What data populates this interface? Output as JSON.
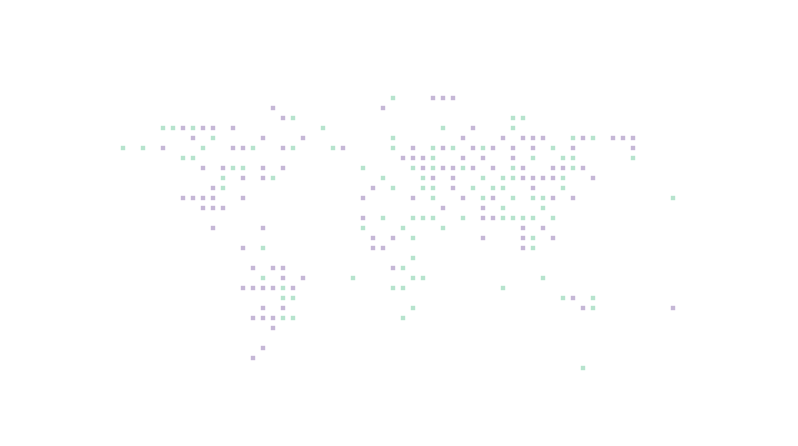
{
  "map": {
    "style": "dotted-world-map",
    "background_color": "#ffffff",
    "palette": {
      "purple": "#c5b7d6",
      "green": "#b6e3cd"
    },
    "dots": [
      {
        "row": 4,
        "col": 39,
        "color": "green"
      },
      {
        "row": 4,
        "col": 43,
        "color": "purple"
      },
      {
        "row": 4,
        "col": 44,
        "color": "purple"
      },
      {
        "row": 4,
        "col": 45,
        "color": "purple"
      },
      {
        "row": 5,
        "col": 27,
        "color": "purple"
      },
      {
        "row": 5,
        "col": 38,
        "color": "purple"
      },
      {
        "row": 6,
        "col": 28,
        "color": "purple"
      },
      {
        "row": 6,
        "col": 29,
        "color": "green"
      },
      {
        "row": 6,
        "col": 51,
        "color": "green"
      },
      {
        "row": 6,
        "col": 52,
        "color": "green"
      },
      {
        "row": 7,
        "col": 16,
        "color": "green"
      },
      {
        "row": 7,
        "col": 17,
        "color": "green"
      },
      {
        "row": 7,
        "col": 18,
        "color": "purple"
      },
      {
        "row": 7,
        "col": 19,
        "color": "green"
      },
      {
        "row": 7,
        "col": 20,
        "color": "purple"
      },
      {
        "row": 7,
        "col": 21,
        "color": "purple"
      },
      {
        "row": 7,
        "col": 23,
        "color": "purple"
      },
      {
        "row": 7,
        "col": 32,
        "color": "green"
      },
      {
        "row": 7,
        "col": 44,
        "color": "green"
      },
      {
        "row": 7,
        "col": 47,
        "color": "purple"
      },
      {
        "row": 7,
        "col": 51,
        "color": "green"
      },
      {
        "row": 8,
        "col": 19,
        "color": "purple"
      },
      {
        "row": 8,
        "col": 21,
        "color": "green"
      },
      {
        "row": 8,
        "col": 26,
        "color": "purple"
      },
      {
        "row": 8,
        "col": 30,
        "color": "purple"
      },
      {
        "row": 8,
        "col": 39,
        "color": "green"
      },
      {
        "row": 8,
        "col": 46,
        "color": "purple"
      },
      {
        "row": 8,
        "col": 50,
        "color": "purple"
      },
      {
        "row": 8,
        "col": 52,
        "color": "purple"
      },
      {
        "row": 8,
        "col": 53,
        "color": "purple"
      },
      {
        "row": 8,
        "col": 54,
        "color": "purple"
      },
      {
        "row": 8,
        "col": 57,
        "color": "green"
      },
      {
        "row": 8,
        "col": 58,
        "color": "purple"
      },
      {
        "row": 8,
        "col": 59,
        "color": "green"
      },
      {
        "row": 8,
        "col": 61,
        "color": "purple"
      },
      {
        "row": 8,
        "col": 62,
        "color": "purple"
      },
      {
        "row": 8,
        "col": 63,
        "color": "purple"
      },
      {
        "row": 9,
        "col": 12,
        "color": "green"
      },
      {
        "row": 9,
        "col": 14,
        "color": "green"
      },
      {
        "row": 9,
        "col": 16,
        "color": "purple"
      },
      {
        "row": 9,
        "col": 20,
        "color": "green"
      },
      {
        "row": 9,
        "col": 23,
        "color": "purple"
      },
      {
        "row": 9,
        "col": 24,
        "color": "purple"
      },
      {
        "row": 9,
        "col": 25,
        "color": "green"
      },
      {
        "row": 9,
        "col": 28,
        "color": "purple"
      },
      {
        "row": 9,
        "col": 29,
        "color": "green"
      },
      {
        "row": 9,
        "col": 33,
        "color": "green"
      },
      {
        "row": 9,
        "col": 34,
        "color": "purple"
      },
      {
        "row": 9,
        "col": 39,
        "color": "green"
      },
      {
        "row": 9,
        "col": 41,
        "color": "purple"
      },
      {
        "row": 9,
        "col": 43,
        "color": "green"
      },
      {
        "row": 9,
        "col": 44,
        "color": "purple"
      },
      {
        "row": 9,
        "col": 45,
        "color": "green"
      },
      {
        "row": 9,
        "col": 47,
        "color": "purple"
      },
      {
        "row": 9,
        "col": 48,
        "color": "green"
      },
      {
        "row": 9,
        "col": 49,
        "color": "purple"
      },
      {
        "row": 9,
        "col": 51,
        "color": "purple"
      },
      {
        "row": 9,
        "col": 53,
        "color": "purple"
      },
      {
        "row": 9,
        "col": 55,
        "color": "green"
      },
      {
        "row": 9,
        "col": 57,
        "color": "purple"
      },
      {
        "row": 9,
        "col": 63,
        "color": "purple"
      },
      {
        "row": 10,
        "col": 18,
        "color": "green"
      },
      {
        "row": 10,
        "col": 19,
        "color": "green"
      },
      {
        "row": 10,
        "col": 40,
        "color": "purple"
      },
      {
        "row": 10,
        "col": 41,
        "color": "purple"
      },
      {
        "row": 10,
        "col": 42,
        "color": "purple"
      },
      {
        "row": 10,
        "col": 43,
        "color": "green"
      },
      {
        "row": 10,
        "col": 46,
        "color": "purple"
      },
      {
        "row": 10,
        "col": 48,
        "color": "purple"
      },
      {
        "row": 10,
        "col": 51,
        "color": "purple"
      },
      {
        "row": 10,
        "col": 53,
        "color": "green"
      },
      {
        "row": 10,
        "col": 56,
        "color": "green"
      },
      {
        "row": 10,
        "col": 57,
        "color": "green"
      },
      {
        "row": 10,
        "col": 63,
        "color": "green"
      },
      {
        "row": 11,
        "col": 20,
        "color": "purple"
      },
      {
        "row": 11,
        "col": 22,
        "color": "purple"
      },
      {
        "row": 11,
        "col": 23,
        "color": "green"
      },
      {
        "row": 11,
        "col": 24,
        "color": "green"
      },
      {
        "row": 11,
        "col": 26,
        "color": "purple"
      },
      {
        "row": 11,
        "col": 28,
        "color": "purple"
      },
      {
        "row": 11,
        "col": 36,
        "color": "green"
      },
      {
        "row": 11,
        "col": 41,
        "color": "green"
      },
      {
        "row": 11,
        "col": 42,
        "color": "purple"
      },
      {
        "row": 11,
        "col": 43,
        "color": "green"
      },
      {
        "row": 11,
        "col": 44,
        "color": "purple"
      },
      {
        "row": 11,
        "col": 45,
        "color": "purple"
      },
      {
        "row": 11,
        "col": 46,
        "color": "green"
      },
      {
        "row": 11,
        "col": 47,
        "color": "purple"
      },
      {
        "row": 11,
        "col": 49,
        "color": "purple"
      },
      {
        "row": 11,
        "col": 51,
        "color": "green"
      },
      {
        "row": 11,
        "col": 52,
        "color": "purple"
      },
      {
        "row": 11,
        "col": 55,
        "color": "purple"
      },
      {
        "row": 11,
        "col": 56,
        "color": "purple"
      },
      {
        "row": 11,
        "col": 57,
        "color": "green"
      },
      {
        "row": 11,
        "col": 58,
        "color": "purple"
      },
      {
        "row": 12,
        "col": 22,
        "color": "green"
      },
      {
        "row": 12,
        "col": 24,
        "color": "purple"
      },
      {
        "row": 12,
        "col": 26,
        "color": "purple"
      },
      {
        "row": 12,
        "col": 27,
        "color": "green"
      },
      {
        "row": 12,
        "col": 38,
        "color": "green"
      },
      {
        "row": 12,
        "col": 42,
        "color": "green"
      },
      {
        "row": 12,
        "col": 43,
        "color": "purple"
      },
      {
        "row": 12,
        "col": 45,
        "color": "purple"
      },
      {
        "row": 12,
        "col": 48,
        "color": "green"
      },
      {
        "row": 12,
        "col": 50,
        "color": "green"
      },
      {
        "row": 12,
        "col": 51,
        "color": "green"
      },
      {
        "row": 12,
        "col": 52,
        "color": "purple"
      },
      {
        "row": 12,
        "col": 53,
        "color": "purple"
      },
      {
        "row": 12,
        "col": 54,
        "color": "purple"
      },
      {
        "row": 12,
        "col": 55,
        "color": "purple"
      },
      {
        "row": 12,
        "col": 56,
        "color": "green"
      },
      {
        "row": 12,
        "col": 59,
        "color": "purple"
      },
      {
        "row": 13,
        "col": 21,
        "color": "purple"
      },
      {
        "row": 13,
        "col": 22,
        "color": "green"
      },
      {
        "row": 13,
        "col": 37,
        "color": "purple"
      },
      {
        "row": 13,
        "col": 39,
        "color": "green"
      },
      {
        "row": 13,
        "col": 42,
        "color": "green"
      },
      {
        "row": 13,
        "col": 43,
        "color": "green"
      },
      {
        "row": 13,
        "col": 45,
        "color": "purple"
      },
      {
        "row": 13,
        "col": 47,
        "color": "green"
      },
      {
        "row": 13,
        "col": 49,
        "color": "green"
      },
      {
        "row": 13,
        "col": 50,
        "color": "green"
      },
      {
        "row": 13,
        "col": 53,
        "color": "purple"
      },
      {
        "row": 13,
        "col": 56,
        "color": "green"
      },
      {
        "row": 14,
        "col": 18,
        "color": "purple"
      },
      {
        "row": 14,
        "col": 19,
        "color": "purple"
      },
      {
        "row": 14,
        "col": 20,
        "color": "purple"
      },
      {
        "row": 14,
        "col": 21,
        "color": "purple"
      },
      {
        "row": 14,
        "col": 24,
        "color": "purple"
      },
      {
        "row": 14,
        "col": 36,
        "color": "purple"
      },
      {
        "row": 14,
        "col": 41,
        "color": "purple"
      },
      {
        "row": 14,
        "col": 43,
        "color": "green"
      },
      {
        "row": 14,
        "col": 46,
        "color": "purple"
      },
      {
        "row": 14,
        "col": 48,
        "color": "green"
      },
      {
        "row": 14,
        "col": 49,
        "color": "purple"
      },
      {
        "row": 14,
        "col": 51,
        "color": "green"
      },
      {
        "row": 14,
        "col": 53,
        "color": "green"
      },
      {
        "row": 14,
        "col": 54,
        "color": "green"
      },
      {
        "row": 14,
        "col": 55,
        "color": "purple"
      },
      {
        "row": 14,
        "col": 57,
        "color": "purple"
      },
      {
        "row": 14,
        "col": 67,
        "color": "green"
      },
      {
        "row": 15,
        "col": 20,
        "color": "purple"
      },
      {
        "row": 15,
        "col": 21,
        "color": "purple"
      },
      {
        "row": 15,
        "col": 22,
        "color": "purple"
      },
      {
        "row": 15,
        "col": 44,
        "color": "purple"
      },
      {
        "row": 15,
        "col": 48,
        "color": "purple"
      },
      {
        "row": 15,
        "col": 50,
        "color": "green"
      },
      {
        "row": 15,
        "col": 54,
        "color": "green"
      },
      {
        "row": 16,
        "col": 36,
        "color": "purple"
      },
      {
        "row": 16,
        "col": 38,
        "color": "green"
      },
      {
        "row": 16,
        "col": 41,
        "color": "green"
      },
      {
        "row": 16,
        "col": 42,
        "color": "green"
      },
      {
        "row": 16,
        "col": 43,
        "color": "green"
      },
      {
        "row": 16,
        "col": 46,
        "color": "green"
      },
      {
        "row": 16,
        "col": 48,
        "color": "purple"
      },
      {
        "row": 16,
        "col": 49,
        "color": "purple"
      },
      {
        "row": 16,
        "col": 50,
        "color": "green"
      },
      {
        "row": 16,
        "col": 51,
        "color": "green"
      },
      {
        "row": 16,
        "col": 52,
        "color": "green"
      },
      {
        "row": 16,
        "col": 53,
        "color": "green"
      },
      {
        "row": 16,
        "col": 55,
        "color": "green"
      },
      {
        "row": 17,
        "col": 21,
        "color": "purple"
      },
      {
        "row": 17,
        "col": 26,
        "color": "purple"
      },
      {
        "row": 17,
        "col": 36,
        "color": "green"
      },
      {
        "row": 17,
        "col": 40,
        "color": "green"
      },
      {
        "row": 17,
        "col": 44,
        "color": "green"
      },
      {
        "row": 17,
        "col": 52,
        "color": "purple"
      },
      {
        "row": 17,
        "col": 54,
        "color": "purple"
      },
      {
        "row": 18,
        "col": 37,
        "color": "purple"
      },
      {
        "row": 18,
        "col": 39,
        "color": "purple"
      },
      {
        "row": 18,
        "col": 41,
        "color": "green"
      },
      {
        "row": 18,
        "col": 48,
        "color": "purple"
      },
      {
        "row": 18,
        "col": 52,
        "color": "purple"
      },
      {
        "row": 18,
        "col": 53,
        "color": "green"
      },
      {
        "row": 18,
        "col": 55,
        "color": "purple"
      },
      {
        "row": 19,
        "col": 24,
        "color": "purple"
      },
      {
        "row": 19,
        "col": 26,
        "color": "green"
      },
      {
        "row": 19,
        "col": 37,
        "color": "purple"
      },
      {
        "row": 19,
        "col": 38,
        "color": "purple"
      },
      {
        "row": 19,
        "col": 52,
        "color": "purple"
      },
      {
        "row": 19,
        "col": 53,
        "color": "green"
      },
      {
        "row": 20,
        "col": 41,
        "color": "green"
      },
      {
        "row": 21,
        "col": 25,
        "color": "purple"
      },
      {
        "row": 21,
        "col": 27,
        "color": "purple"
      },
      {
        "row": 21,
        "col": 28,
        "color": "purple"
      },
      {
        "row": 21,
        "col": 39,
        "color": "purple"
      },
      {
        "row": 21,
        "col": 40,
        "color": "green"
      },
      {
        "row": 22,
        "col": 26,
        "color": "green"
      },
      {
        "row": 22,
        "col": 28,
        "color": "purple"
      },
      {
        "row": 22,
        "col": 30,
        "color": "purple"
      },
      {
        "row": 22,
        "col": 35,
        "color": "green"
      },
      {
        "row": 22,
        "col": 41,
        "color": "green"
      },
      {
        "row": 22,
        "col": 42,
        "color": "green"
      },
      {
        "row": 22,
        "col": 54,
        "color": "green"
      },
      {
        "row": 23,
        "col": 24,
        "color": "purple"
      },
      {
        "row": 23,
        "col": 25,
        "color": "purple"
      },
      {
        "row": 23,
        "col": 26,
        "color": "purple"
      },
      {
        "row": 23,
        "col": 27,
        "color": "purple"
      },
      {
        "row": 23,
        "col": 28,
        "color": "green"
      },
      {
        "row": 23,
        "col": 29,
        "color": "purple"
      },
      {
        "row": 23,
        "col": 39,
        "color": "green"
      },
      {
        "row": 23,
        "col": 40,
        "color": "green"
      },
      {
        "row": 23,
        "col": 50,
        "color": "green"
      },
      {
        "row": 24,
        "col": 28,
        "color": "green"
      },
      {
        "row": 24,
        "col": 29,
        "color": "green"
      },
      {
        "row": 24,
        "col": 56,
        "color": "green"
      },
      {
        "row": 24,
        "col": 57,
        "color": "purple"
      },
      {
        "row": 24,
        "col": 59,
        "color": "green"
      },
      {
        "row": 25,
        "col": 26,
        "color": "purple"
      },
      {
        "row": 25,
        "col": 28,
        "color": "purple"
      },
      {
        "row": 25,
        "col": 41,
        "color": "green"
      },
      {
        "row": 25,
        "col": 58,
        "color": "purple"
      },
      {
        "row": 25,
        "col": 59,
        "color": "green"
      },
      {
        "row": 25,
        "col": 67,
        "color": "purple"
      },
      {
        "row": 26,
        "col": 25,
        "color": "purple"
      },
      {
        "row": 26,
        "col": 26,
        "color": "purple"
      },
      {
        "row": 26,
        "col": 27,
        "color": "purple"
      },
      {
        "row": 26,
        "col": 28,
        "color": "green"
      },
      {
        "row": 26,
        "col": 29,
        "color": "green"
      },
      {
        "row": 26,
        "col": 40,
        "color": "green"
      },
      {
        "row": 27,
        "col": 27,
        "color": "purple"
      },
      {
        "row": 29,
        "col": 26,
        "color": "purple"
      },
      {
        "row": 30,
        "col": 25,
        "color": "purple"
      },
      {
        "row": 31,
        "col": 58,
        "color": "green"
      }
    ]
  }
}
